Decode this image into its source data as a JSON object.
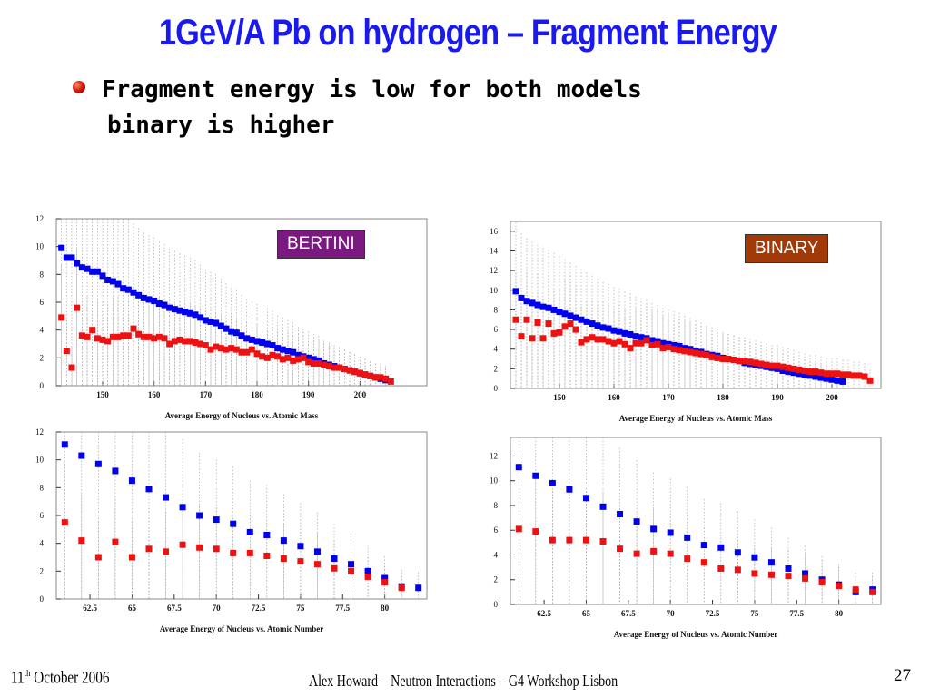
{
  "slide": {
    "title": "1GeV/A Pb on hydrogen – Fragment Energy",
    "bullets": [
      "Fragment energy is low for both models",
      "binary is higher"
    ],
    "footer_date_day": "11",
    "footer_date_sup": "th",
    "footer_date_rest": "October 2006",
    "footer_center": "Alex Howard – Neutron Interactions – G4 Workshop Lisbon",
    "page_number": "27",
    "label_bertini": "BERTINI",
    "label_binary": "BINARY",
    "colors": {
      "title": "#1a1aee",
      "blue": "#0000ee",
      "red": "#ee1111",
      "bertini_box": "#7a1a80",
      "binary_box": "#a23a08"
    }
  },
  "chart_data": [
    {
      "id": "bertini-mass",
      "type": "scatter",
      "xlabel": "Average Energy of Nucleus vs. Atomic Mass",
      "xlim": [
        141,
        213
      ],
      "ylim": [
        0,
        12
      ],
      "xticks": [
        150,
        160,
        170,
        180,
        190,
        200
      ],
      "yticks": [
        0,
        2,
        4,
        6,
        8,
        10,
        12
      ],
      "series": [
        {
          "color": "blue",
          "x": [
            142,
            143,
            144,
            145,
            146,
            147,
            148,
            149,
            150,
            151,
            152,
            153,
            154,
            155,
            156,
            157,
            158,
            159,
            160,
            161,
            162,
            163,
            164,
            165,
            166,
            167,
            168,
            169,
            170,
            171,
            172,
            173,
            174,
            175,
            176,
            177,
            178,
            179,
            180,
            181,
            182,
            183,
            184,
            185,
            186,
            187,
            188,
            189,
            190,
            191,
            192,
            193,
            194,
            195,
            196,
            197,
            198,
            199,
            200,
            201,
            202,
            203,
            204,
            205
          ],
          "y": [
            9.9,
            9.2,
            9.2,
            8.8,
            8.5,
            8.4,
            8.2,
            8.2,
            7.9,
            7.6,
            7.5,
            7.3,
            7.0,
            6.9,
            6.7,
            6.5,
            6.3,
            6.2,
            6.1,
            5.9,
            5.8,
            5.6,
            5.5,
            5.4,
            5.3,
            5.2,
            5.1,
            4.9,
            4.7,
            4.6,
            4.5,
            4.3,
            4.1,
            3.9,
            3.8,
            3.6,
            3.4,
            3.3,
            3.2,
            3.1,
            3.0,
            2.9,
            2.7,
            2.6,
            2.5,
            2.4,
            2.2,
            2.1,
            2.0,
            1.9,
            1.8,
            1.6,
            1.5,
            1.4,
            1.3,
            1.2,
            1.1,
            1.0,
            0.9,
            0.8,
            0.7,
            0.6,
            0.5,
            0.4
          ]
        },
        {
          "color": "red",
          "x": [
            142,
            143,
            144,
            145,
            146,
            147,
            148,
            149,
            150,
            151,
            152,
            153,
            154,
            155,
            156,
            157,
            158,
            159,
            160,
            161,
            162,
            163,
            164,
            165,
            166,
            167,
            168,
            169,
            170,
            171,
            172,
            173,
            174,
            175,
            176,
            177,
            178,
            179,
            180,
            181,
            182,
            183,
            184,
            185,
            186,
            187,
            188,
            189,
            190,
            191,
            192,
            193,
            194,
            195,
            196,
            197,
            198,
            199,
            200,
            201,
            202,
            203,
            204,
            205,
            206
          ],
          "y": [
            4.9,
            2.5,
            1.3,
            5.6,
            3.6,
            3.5,
            4.0,
            3.4,
            3.3,
            3.2,
            3.5,
            3.5,
            3.6,
            3.6,
            4.1,
            3.7,
            3.5,
            3.5,
            3.4,
            3.5,
            3.4,
            3.0,
            3.2,
            3.3,
            3.2,
            3.2,
            3.1,
            3.0,
            2.9,
            2.6,
            2.8,
            2.7,
            2.6,
            2.7,
            2.6,
            2.4,
            2.4,
            2.6,
            2.3,
            2.1,
            2.0,
            2.2,
            2.1,
            1.9,
            2.0,
            1.8,
            1.9,
            2.0,
            1.7,
            1.6,
            1.6,
            1.5,
            1.4,
            1.3,
            1.3,
            1.2,
            1.1,
            1.0,
            0.9,
            0.8,
            0.7,
            0.6,
            0.6,
            0.5,
            0.3
          ]
        }
      ]
    },
    {
      "id": "binary-mass",
      "type": "scatter",
      "xlabel": "Average Energy of Nucleus vs. Atomic Mass",
      "xlim": [
        141,
        209
      ],
      "ylim": [
        0,
        17
      ],
      "xticks": [
        150,
        160,
        170,
        180,
        190,
        200
      ],
      "yticks": [
        0,
        2,
        4,
        6,
        8,
        10,
        12,
        14,
        16
      ],
      "series": [
        {
          "color": "blue",
          "x": [
            142,
            143,
            144,
            145,
            146,
            147,
            148,
            149,
            150,
            151,
            152,
            153,
            154,
            155,
            156,
            157,
            158,
            159,
            160,
            161,
            162,
            163,
            164,
            165,
            166,
            167,
            168,
            169,
            170,
            171,
            172,
            173,
            174,
            175,
            176,
            177,
            178,
            179,
            180,
            181,
            182,
            183,
            184,
            185,
            186,
            187,
            188,
            189,
            190,
            191,
            192,
            193,
            194,
            195,
            196,
            197,
            198,
            199,
            200,
            201,
            202
          ],
          "y": [
            9.9,
            9.2,
            8.9,
            8.7,
            8.5,
            8.3,
            8.2,
            8.0,
            7.8,
            7.6,
            7.4,
            7.2,
            7.0,
            6.8,
            6.6,
            6.4,
            6.2,
            6.1,
            5.9,
            5.8,
            5.6,
            5.5,
            5.3,
            5.2,
            5.1,
            4.9,
            4.8,
            4.6,
            4.5,
            4.4,
            4.3,
            4.1,
            4.0,
            3.8,
            3.7,
            3.5,
            3.4,
            3.3,
            3.1,
            3.0,
            2.9,
            2.8,
            2.6,
            2.5,
            2.4,
            2.3,
            2.2,
            2.1,
            2.0,
            1.8,
            1.7,
            1.6,
            1.5,
            1.4,
            1.3,
            1.2,
            1.1,
            1.0,
            0.9,
            0.8,
            0.7
          ]
        },
        {
          "color": "red",
          "x": [
            142,
            143,
            144,
            145,
            146,
            147,
            148,
            149,
            150,
            151,
            152,
            153,
            154,
            155,
            156,
            157,
            158,
            159,
            160,
            161,
            162,
            163,
            164,
            165,
            166,
            167,
            168,
            169,
            170,
            171,
            172,
            173,
            174,
            175,
            176,
            177,
            178,
            179,
            180,
            181,
            182,
            183,
            184,
            185,
            186,
            187,
            188,
            189,
            190,
            191,
            192,
            193,
            194,
            195,
            196,
            197,
            198,
            199,
            200,
            201,
            202,
            203,
            204,
            205,
            206,
            207
          ],
          "y": [
            7.0,
            5.3,
            7.0,
            5.1,
            6.7,
            5.1,
            6.6,
            5.6,
            5.7,
            6.3,
            6.6,
            6.0,
            4.7,
            5.0,
            5.2,
            5.0,
            5.0,
            4.8,
            4.6,
            4.8,
            4.5,
            4.1,
            4.6,
            4.6,
            4.9,
            4.4,
            4.5,
            4.1,
            4.2,
            4.0,
            3.9,
            3.8,
            3.7,
            3.6,
            3.5,
            3.4,
            3.2,
            3.1,
            3.0,
            3.0,
            2.9,
            2.8,
            2.8,
            2.7,
            2.6,
            2.5,
            2.4,
            2.3,
            2.3,
            2.2,
            2.1,
            2.0,
            1.9,
            1.8,
            1.7,
            1.7,
            1.6,
            1.5,
            1.5,
            1.5,
            1.4,
            1.4,
            1.3,
            1.3,
            1.2,
            0.8
          ]
        }
      ]
    },
    {
      "id": "bertini-number",
      "type": "scatter",
      "xlabel": "Average Energy of Nucleus vs. Atomic Number",
      "xlim": [
        60.5,
        82.5
      ],
      "ylim": [
        0,
        12
      ],
      "xticks": [
        62.5,
        65,
        67.5,
        70,
        72.5,
        75,
        77.5,
        80
      ],
      "yticks": [
        0,
        2,
        4,
        6,
        8,
        10,
        12
      ],
      "series": [
        {
          "color": "blue",
          "x": [
            61,
            62,
            63,
            64,
            65,
            66,
            67,
            68,
            69,
            70,
            71,
            72,
            73,
            74,
            75,
            76,
            77,
            78,
            79,
            80,
            81,
            82
          ],
          "y": [
            11.1,
            10.3,
            9.7,
            9.2,
            8.5,
            7.9,
            7.3,
            6.6,
            6.0,
            5.7,
            5.4,
            4.8,
            4.6,
            4.2,
            3.8,
            3.4,
            2.9,
            2.5,
            2.0,
            1.5,
            0.9,
            0.8
          ]
        },
        {
          "color": "red",
          "x": [
            61,
            62,
            63,
            64,
            65,
            66,
            67,
            68,
            69,
            70,
            71,
            72,
            73,
            74,
            75,
            76,
            77,
            78,
            79,
            80,
            81
          ],
          "y": [
            5.5,
            4.2,
            3.0,
            4.1,
            3.0,
            3.6,
            3.4,
            3.9,
            3.7,
            3.6,
            3.3,
            3.3,
            3.1,
            2.9,
            2.7,
            2.5,
            2.2,
            2.0,
            1.6,
            1.2,
            0.8
          ]
        }
      ]
    },
    {
      "id": "binary-number",
      "type": "scatter",
      "xlabel": "Average Energy of Nucleus vs. Atomic Number",
      "xlim": [
        60.5,
        82.5
      ],
      "ylim": [
        0,
        13.5
      ],
      "xticks": [
        62.5,
        65,
        67.5,
        70,
        72.5,
        75,
        77.5,
        80
      ],
      "yticks": [
        0,
        2,
        4,
        6,
        8,
        10,
        12
      ],
      "series": [
        {
          "color": "blue",
          "x": [
            61,
            62,
            63,
            64,
            65,
            66,
            67,
            68,
            69,
            70,
            71,
            72,
            73,
            74,
            75,
            76,
            77,
            78,
            79,
            80,
            81,
            82
          ],
          "y": [
            11.1,
            10.4,
            9.8,
            9.3,
            8.6,
            7.9,
            7.3,
            6.7,
            6.1,
            5.8,
            5.4,
            4.8,
            4.6,
            4.2,
            3.8,
            3.4,
            2.9,
            2.5,
            2.0,
            1.6,
            1.0,
            1.2
          ]
        },
        {
          "color": "red",
          "x": [
            61,
            62,
            63,
            64,
            65,
            66,
            67,
            68,
            69,
            70,
            71,
            72,
            73,
            74,
            75,
            76,
            77,
            78,
            79,
            80,
            81,
            82
          ],
          "y": [
            6.1,
            5.9,
            5.2,
            5.2,
            5.2,
            5.1,
            4.5,
            4.1,
            4.3,
            4.1,
            3.7,
            3.4,
            2.9,
            2.8,
            2.5,
            2.4,
            2.3,
            2.1,
            1.8,
            1.5,
            1.2,
            1.0
          ]
        }
      ]
    }
  ]
}
